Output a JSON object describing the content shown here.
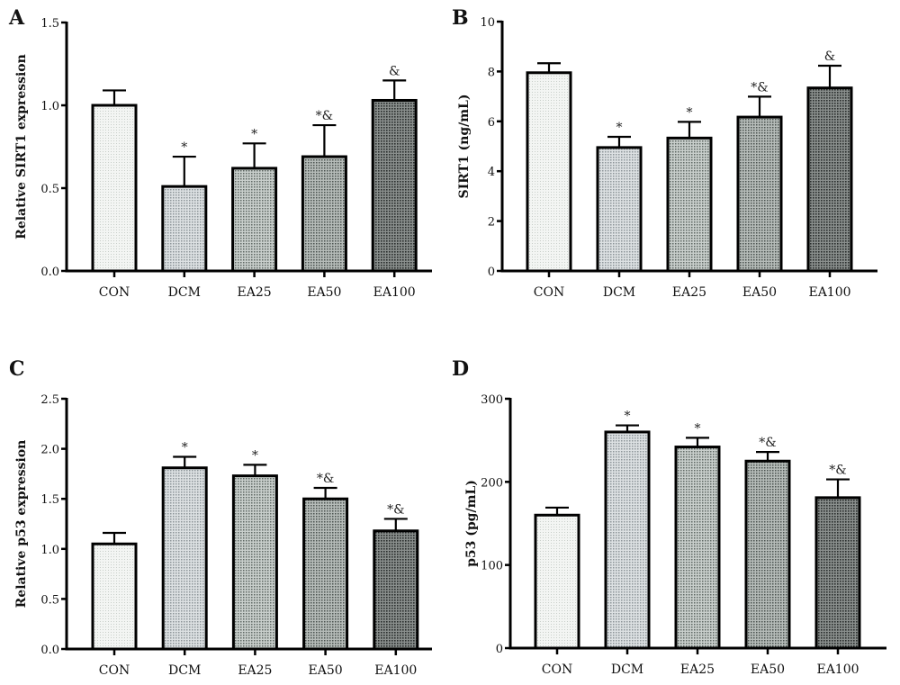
{
  "figure": {
    "panels_order": [
      "A",
      "B",
      "C",
      "D"
    ]
  },
  "chart_data": [
    {
      "panel": "A",
      "type": "bar",
      "title": "",
      "xlabel": "",
      "ylabel": "Relative SIRT1 expression",
      "ylim": [
        0,
        1.5
      ],
      "yticks": [
        0.0,
        0.5,
        1.0,
        1.5
      ],
      "ytick_labels": [
        "0.0",
        "0.5",
        "1.0",
        "1.5"
      ],
      "categories": [
        "CON",
        "DCM",
        "EA25",
        "EA50",
        "EA100"
      ],
      "values": [
        1.0,
        0.51,
        0.62,
        0.69,
        1.03
      ],
      "error_upper": [
        0.09,
        0.18,
        0.15,
        0.19,
        0.12
      ],
      "annotations": [
        "",
        "*",
        "*",
        "*&",
        "&"
      ],
      "fills": [
        "#eef0ee",
        "#c9cdd0",
        "#aab2ae",
        "#8f9794",
        "#5f6462"
      ],
      "grid": false
    },
    {
      "panel": "B",
      "type": "bar",
      "title": "",
      "xlabel": "",
      "ylabel": "SIRT1 (ng/mL)",
      "ylim": [
        0,
        10
      ],
      "yticks": [
        0,
        2,
        4,
        6,
        8,
        10
      ],
      "ytick_labels": [
        "0",
        "2",
        "4",
        "6",
        "8",
        "10"
      ],
      "categories": [
        "CON",
        "DCM",
        "EA25",
        "EA50",
        "EA100"
      ],
      "values": [
        7.95,
        4.95,
        5.33,
        6.17,
        7.34
      ],
      "error_upper": [
        0.38,
        0.43,
        0.65,
        0.82,
        0.89
      ],
      "annotations": [
        "",
        "*",
        "*",
        "*&",
        "&"
      ],
      "fills": [
        "#eef0ee",
        "#c9cdd0",
        "#aab2ae",
        "#8f9794",
        "#5f6462"
      ],
      "grid": false
    },
    {
      "panel": "C",
      "type": "bar",
      "title": "",
      "xlabel": "",
      "ylabel": "Relative p53 expression",
      "ylim": [
        0,
        2.5
      ],
      "yticks": [
        0.0,
        0.5,
        1.0,
        1.5,
        2.0,
        2.5
      ],
      "ytick_labels": [
        "0.0",
        "0.5",
        "1.0",
        "1.5",
        "2.0",
        "2.5"
      ],
      "categories": [
        "CON",
        "DCM",
        "EA25",
        "EA50",
        "EA100"
      ],
      "values": [
        1.05,
        1.81,
        1.73,
        1.5,
        1.18
      ],
      "error_upper": [
        0.11,
        0.11,
        0.11,
        0.11,
        0.12
      ],
      "annotations": [
        "",
        "*",
        "*",
        "*&",
        "*&"
      ],
      "fills": [
        "#eef0ee",
        "#c9cdd0",
        "#aab2ae",
        "#8f9794",
        "#5f6462"
      ],
      "grid": false
    },
    {
      "panel": "D",
      "type": "bar",
      "title": "",
      "xlabel": "",
      "ylabel": "p53 (pg/mL)",
      "ylim": [
        0,
        300
      ],
      "yticks": [
        0,
        100,
        200,
        300
      ],
      "ytick_labels": [
        "0",
        "100",
        "200",
        "300"
      ],
      "categories": [
        "CON",
        "DCM",
        "EA25",
        "EA50",
        "EA100"
      ],
      "values": [
        160,
        260,
        242,
        225,
        181
      ],
      "error_upper": [
        9,
        8,
        11,
        11,
        22
      ],
      "annotations": [
        "",
        "*",
        "*",
        "*&",
        "*&"
      ],
      "fills": [
        "#eef0ee",
        "#c9cdd0",
        "#aab2ae",
        "#8f9794",
        "#5f6462"
      ],
      "grid": false
    }
  ]
}
